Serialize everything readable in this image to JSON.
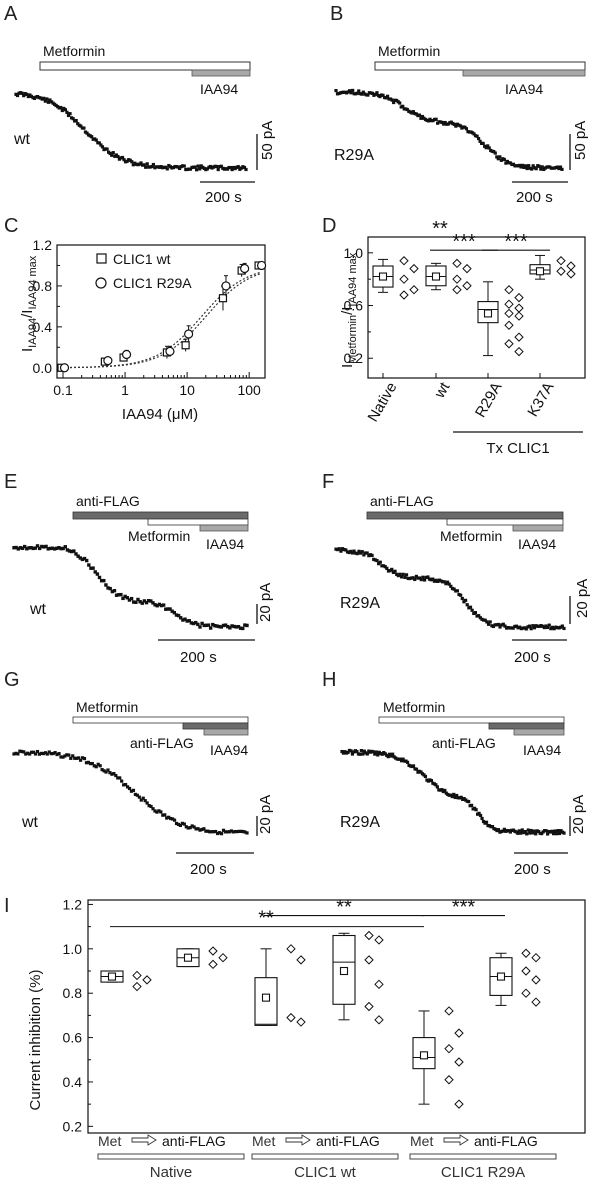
{
  "panels": {
    "A": {
      "letter": "A",
      "label": "wt",
      "bar1": "Metformin",
      "bar2": "IAA94",
      "scale_v": "50 pA",
      "scale_h": "200 s"
    },
    "B": {
      "letter": "B",
      "label": "R29A",
      "bar1": "Metformin",
      "bar2": "IAA94",
      "scale_v": "50 pA",
      "scale_h": "200 s"
    },
    "C": {
      "letter": "C"
    },
    "D": {
      "letter": "D"
    },
    "E": {
      "letter": "E",
      "label": "wt",
      "bar1": "anti-FLAG",
      "bar2": "Metformin",
      "bar3": "IAA94",
      "scale_v": "20 pA",
      "scale_h": "200 s"
    },
    "F": {
      "letter": "F",
      "label": "R29A",
      "bar1": "anti-FLAG",
      "bar2": "Metformin",
      "bar3": "IAA94",
      "scale_v": "20 pA",
      "scale_h": "200 s"
    },
    "G": {
      "letter": "G",
      "label": "wt",
      "bar1": "Metformin",
      "bar2": "anti-FLAG",
      "bar3": "IAA94",
      "scale_v": "20 pA",
      "scale_h": "200 s"
    },
    "H": {
      "letter": "H",
      "label": "R29A",
      "bar1": "Metformin",
      "bar2": "anti-FLAG",
      "bar3": "IAA94",
      "scale_v": "20 pA",
      "scale_h": "200 s"
    },
    "I": {
      "letter": "I"
    }
  },
  "chart_data": [
    {
      "id": "C",
      "type": "scatter",
      "xlabel": "IAA94 (μM)",
      "ylabel_main": "I",
      "ylabel_sub1": "IAA94",
      "ylabel_mid": "/I",
      "ylabel_sub2": "IAA94 max",
      "x_scale": "log",
      "xlim": [
        0.08,
        180
      ],
      "ylim": [
        -0.1,
        1.2
      ],
      "x_ticks": [
        "0.1",
        "1",
        "10",
        "100"
      ],
      "y_ticks": [
        "0.0",
        "0.4",
        "0.8",
        "1.2"
      ],
      "y_tick_values": [
        0,
        0.4,
        0.8,
        1.2
      ],
      "legend_position": "top-left",
      "series": [
        {
          "name": "CLIC1 wt",
          "marker": "square",
          "x": [
            0.1,
            0.5,
            1,
            5,
            10,
            40,
            80,
            150
          ],
          "y": [
            0.0,
            0.06,
            0.1,
            0.15,
            0.22,
            0.68,
            0.95,
            1.0
          ],
          "err": [
            0.02,
            0.03,
            0.03,
            0.06,
            0.06,
            0.12,
            0.06,
            0.02
          ]
        },
        {
          "name": "CLIC1 R29A",
          "marker": "circle",
          "x": [
            0.1,
            0.5,
            1,
            5,
            10,
            40,
            80,
            150
          ],
          "y": [
            0.0,
            0.07,
            0.13,
            0.16,
            0.33,
            0.8,
            0.97,
            1.0
          ],
          "err": [
            0.02,
            0.03,
            0.04,
            0.05,
            0.08,
            0.1,
            0.05,
            0.02
          ]
        }
      ],
      "fits": [
        {
          "ec50": 20,
          "hill": 1.2
        },
        {
          "ec50": 17,
          "hill": 1.2
        }
      ]
    },
    {
      "id": "D",
      "type": "box",
      "ylabel_main": "I",
      "ylabel_sub1": "Metformin",
      "ylabel_mid": "/I",
      "ylabel_sub2": "IAA94 max",
      "ylim": [
        0.05,
        1.12
      ],
      "y_ticks": [
        "0.2",
        "0.6",
        "1.0"
      ],
      "y_tick_values": [
        0.2,
        0.6,
        1.0
      ],
      "categories": [
        "Native",
        "wt",
        "R29A",
        "K37A"
      ],
      "group_label": "Tx CLIC1",
      "boxes": [
        {
          "q1": 0.74,
          "median": 0.82,
          "q3": 0.9,
          "mean": 0.82,
          "min": 0.7,
          "max": 0.95
        },
        {
          "q1": 0.75,
          "median": 0.82,
          "q3": 0.9,
          "mean": 0.82,
          "min": 0.72,
          "max": 0.92
        },
        {
          "q1": 0.47,
          "median": 0.57,
          "q3": 0.63,
          "mean": 0.54,
          "min": 0.22,
          "max": 0.78
        },
        {
          "q1": 0.84,
          "median": 0.87,
          "q3": 0.91,
          "mean": 0.86,
          "min": 0.8,
          "max": 0.98
        }
      ],
      "points": [
        [
          0.94,
          0.88,
          0.8,
          0.72,
          0.68
        ],
        [
          0.92,
          0.88,
          0.8,
          0.75,
          0.72
        ],
        [
          0.72,
          0.66,
          0.61,
          0.58,
          0.54,
          0.52,
          0.45,
          0.36,
          0.31,
          0.25
        ],
        [
          0.94,
          0.9,
          0.86,
          0.84
        ]
      ],
      "sig": [
        {
          "label": "**",
          "from": 0,
          "to": 2,
          "y": 1.12
        },
        {
          "label": "***",
          "from": 1,
          "to": 2,
          "y": 1.02
        },
        {
          "label": "***",
          "from": 2,
          "to": 3,
          "y": 1.02
        }
      ]
    },
    {
      "id": "I",
      "type": "box",
      "ylabel": "Current inhibition (%)",
      "ylim": [
        0.17,
        1.22
      ],
      "y_ticks": [
        "0.2",
        "0.4",
        "0.6",
        "0.8",
        "1.0",
        "1.2"
      ],
      "y_tick_values": [
        0.2,
        0.4,
        0.6,
        0.8,
        1.0,
        1.2
      ],
      "groups": [
        "Native",
        "CLIC1 wt",
        "CLIC1 R29A"
      ],
      "sublabels": [
        "Met",
        "anti-FLAG"
      ],
      "boxes": [
        {
          "q1": 0.85,
          "median": 0.875,
          "q3": 0.9,
          "mean": 0.875,
          "min": 0.85,
          "max": 0.9
        },
        {
          "q1": 0.92,
          "median": 0.96,
          "q3": 1.0,
          "mean": 0.96,
          "min": 0.92,
          "max": 1.0
        },
        {
          "q1": 0.655,
          "median": 0.66,
          "q3": 0.87,
          "mean": 0.78,
          "min": 0.655,
          "max": 1.0
        },
        {
          "q1": 0.75,
          "median": 0.94,
          "q3": 1.06,
          "mean": 0.9,
          "min": 0.68,
          "max": 1.07
        },
        {
          "q1": 0.46,
          "median": 0.51,
          "q3": 0.6,
          "mean": 0.52,
          "min": 0.3,
          "max": 0.72
        },
        {
          "q1": 0.79,
          "median": 0.875,
          "q3": 0.96,
          "mean": 0.875,
          "min": 0.745,
          "max": 0.98
        }
      ],
      "points": [
        [
          0.88,
          0.86,
          0.83
        ],
        [
          0.99,
          0.96,
          0.93
        ],
        [
          1.0,
          0.95,
          0.69,
          0.67
        ],
        [
          1.06,
          1.04,
          0.95,
          0.84,
          0.74,
          0.68
        ],
        [
          0.72,
          0.62,
          0.55,
          0.49,
          0.41,
          0.3
        ],
        [
          0.98,
          0.96,
          0.9,
          0.86,
          0.8,
          0.76
        ]
      ],
      "sig": [
        {
          "label": "**",
          "from": 0,
          "to": 4,
          "y": 1.1
        },
        {
          "label": "**",
          "from": 2,
          "to": 4,
          "y": 1.15
        },
        {
          "label": "***",
          "from": 4,
          "to": 5,
          "y": 1.15
        }
      ]
    }
  ]
}
